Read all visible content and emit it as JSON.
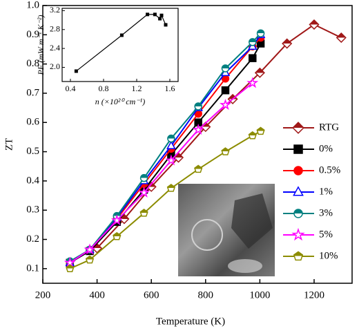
{
  "chart_data": [
    {
      "type": "line",
      "xlabel": "Temperature (K)",
      "ylabel": "ZT",
      "xlim": [
        200,
        1340
      ],
      "xticks": [
        200,
        400,
        600,
        800,
        1000,
        1200
      ],
      "ylim": [
        0.05,
        1.0
      ],
      "yticks": [
        0.1,
        0.2,
        0.3,
        0.4,
        0.5,
        0.6,
        0.7,
        0.8,
        0.9,
        {
          "value": 1,
          "label": "1.0"
        }
      ],
      "series": [
        {
          "name": "RTG",
          "color": "#a01818",
          "marker": "diamond",
          "marker_fill": "half",
          "x": [
            400,
            500,
            600,
            700,
            800,
            900,
            1000,
            1100,
            1200,
            1300
          ],
          "values": [
            0.17,
            0.27,
            0.38,
            0.48,
            0.585,
            0.68,
            0.77,
            0.87,
            0.935,
            0.89
          ]
        },
        {
          "name": "0%",
          "color": "#000000",
          "marker": "square",
          "marker_fill": "solid",
          "x": [
            300,
            373,
            473,
            573,
            673,
            773,
            873,
            973,
            1003
          ],
          "values": [
            0.12,
            0.16,
            0.26,
            0.37,
            0.49,
            0.6,
            0.71,
            0.82,
            0.87
          ]
        },
        {
          "name": "0.5%",
          "color": "#ff0000",
          "marker": "circle",
          "marker_fill": "solid",
          "x": [
            300,
            373,
            473,
            573,
            673,
            773,
            873,
            973,
            1003
          ],
          "values": [
            0.12,
            0.165,
            0.27,
            0.39,
            0.51,
            0.63,
            0.75,
            0.86,
            0.89
          ]
        },
        {
          "name": "1%",
          "color": "#0000ff",
          "marker": "triangle",
          "marker_fill": "open",
          "x": [
            300,
            373,
            473,
            573,
            673,
            773,
            873,
            973,
            1003
          ],
          "values": [
            0.12,
            0.165,
            0.275,
            0.4,
            0.52,
            0.65,
            0.77,
            0.86,
            0.9
          ]
        },
        {
          "name": "3%",
          "color": "#008080",
          "marker": "circle",
          "marker_fill": "half",
          "x": [
            300,
            373,
            473,
            573,
            673,
            773,
            873,
            973,
            1003
          ],
          "values": [
            0.125,
            0.165,
            0.28,
            0.41,
            0.545,
            0.655,
            0.785,
            0.875,
            0.905
          ]
        },
        {
          "name": "5%",
          "color": "#ff00ff",
          "marker": "star",
          "marker_fill": "open",
          "x": [
            300,
            373,
            473,
            573,
            673,
            773,
            873,
            973
          ],
          "values": [
            0.12,
            0.165,
            0.265,
            0.36,
            0.47,
            0.575,
            0.66,
            0.735
          ]
        },
        {
          "name": "10%",
          "color": "#8c8c00",
          "marker": "pentagon",
          "marker_fill": "half",
          "x": [
            300,
            373,
            473,
            573,
            673,
            773,
            873,
            973,
            1003
          ],
          "values": [
            0.1,
            0.13,
            0.21,
            0.29,
            0.375,
            0.44,
            0.5,
            0.555,
            0.57
          ]
        }
      ]
    },
    {
      "type": "scatter",
      "xlabel": "n (×10²⁰ cm⁻¹)",
      "ylabel": "PF (mW m⁻¹ K⁻²)",
      "xlim": [
        0.3,
        1.7
      ],
      "xticks": [
        0.4,
        0.8,
        1.2,
        1.6
      ],
      "ylim": [
        1.7,
        3.25
      ],
      "yticks": [
        {
          "value": 2,
          "label": "2.0"
        },
        2.4,
        2.8,
        3.2
      ],
      "color": "#000000",
      "x": [
        0.47,
        1.02,
        1.33,
        1.42,
        1.48,
        1.5,
        1.55
      ],
      "values": [
        1.92,
        2.68,
        3.12,
        3.12,
        3.03,
        3.1,
        2.9
      ]
    }
  ]
}
